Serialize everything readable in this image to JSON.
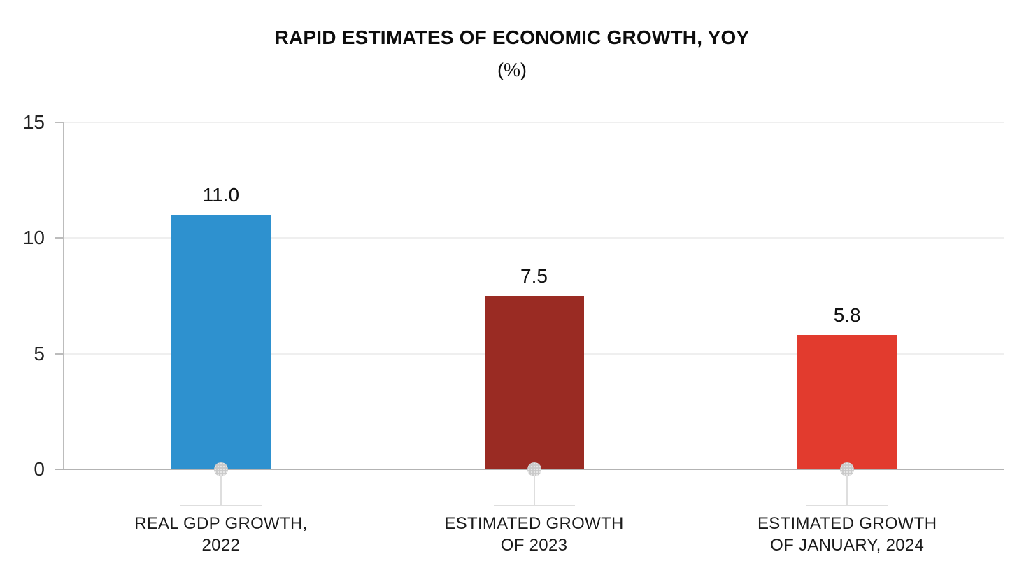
{
  "page": {
    "background": "#ffffff"
  },
  "chart_data": {
    "type": "bar",
    "title": "RAPID ESTIMATES OF ECONOMIC GROWTH, YOY",
    "subtitle": "(%)",
    "categories": [
      [
        "REAL GDP GROWTH,",
        "2022"
      ],
      [
        "ESTIMATED GROWTH",
        "OF 2023"
      ],
      [
        "ESTIMATED GROWTH",
        "OF JANUARY, 2024"
      ]
    ],
    "values": [
      11.0,
      7.5,
      5.8
    ],
    "value_labels": [
      "11.0",
      "7.5",
      "5.8"
    ],
    "bar_colors": [
      "#2E91CF",
      "#9A2B23",
      "#E23B2E"
    ],
    "ylim": [
      0,
      15
    ],
    "yticks": [
      0,
      5,
      10,
      15
    ],
    "grid": "horizontal-light",
    "legend": "none",
    "axis_color": "#BCBCBC",
    "baseline_color": "#B3B3B3",
    "gridline_color": "#EFEFEF",
    "marker_dot_color": "#C9C9C9"
  }
}
